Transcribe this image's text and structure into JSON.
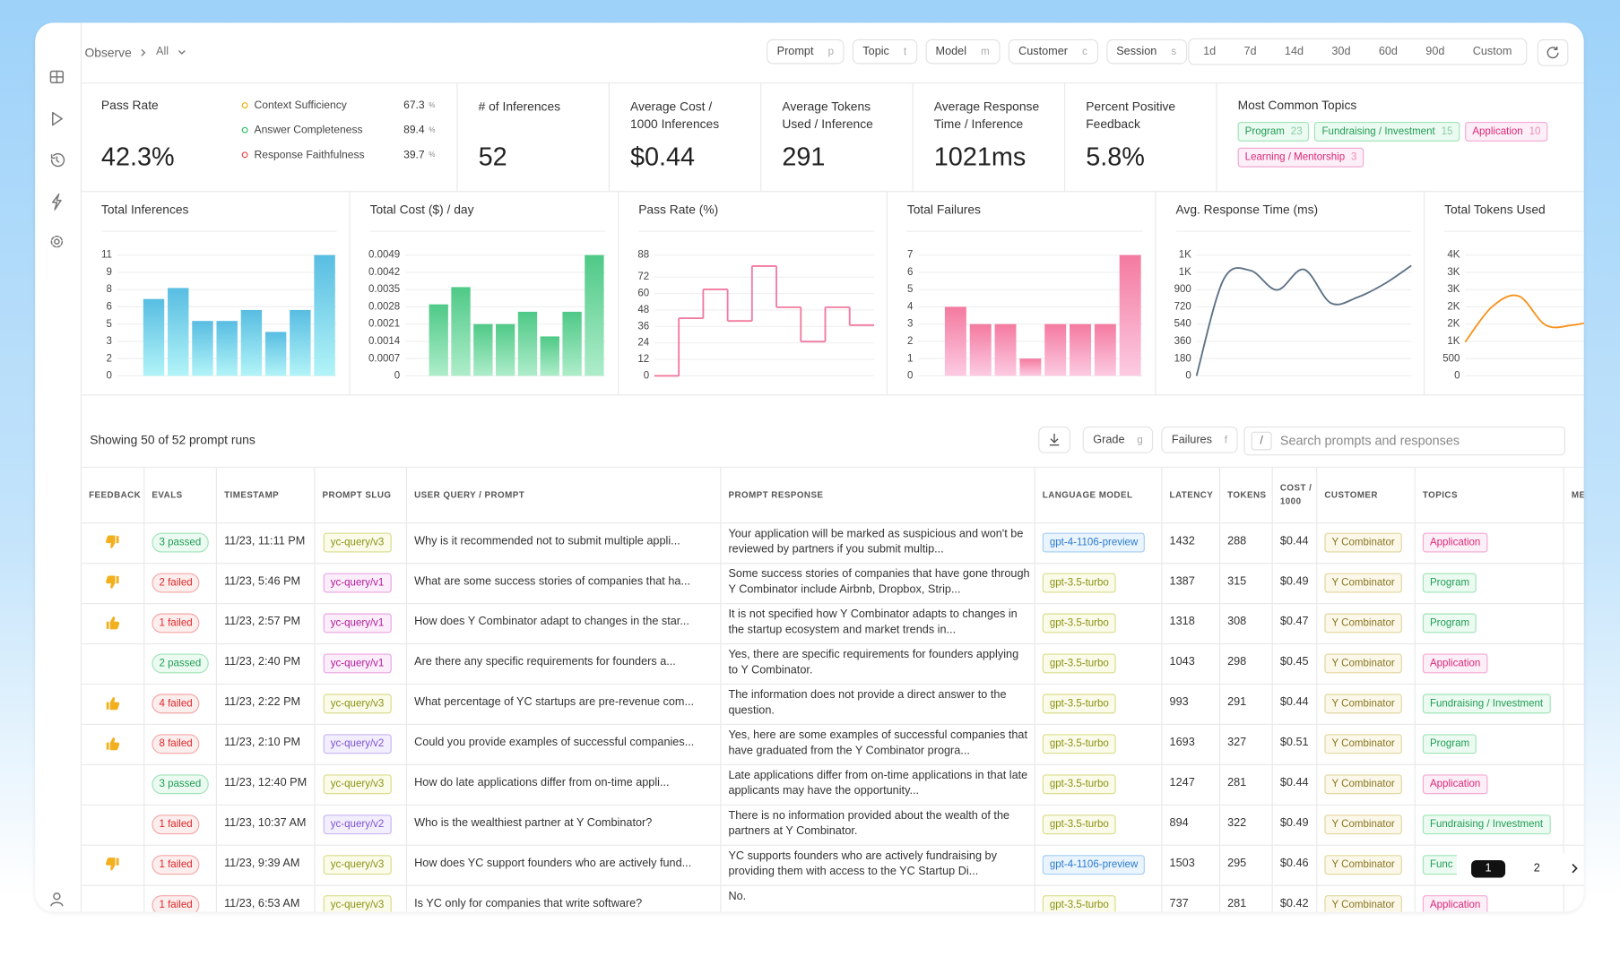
{
  "breadcrumb": {
    "section": "Observe",
    "filter": "All"
  },
  "filters": [
    {
      "label": "Prompt",
      "key": "p"
    },
    {
      "label": "Topic",
      "key": "t"
    },
    {
      "label": "Model",
      "key": "m"
    },
    {
      "label": "Customer",
      "key": "c"
    },
    {
      "label": "Session",
      "key": "s"
    }
  ],
  "ranges": [
    "1d",
    "7d",
    "14d",
    "30d",
    "60d",
    "90d",
    "Custom"
  ],
  "stats": {
    "pass_rate": {
      "label": "Pass Rate",
      "value": "42.3%",
      "metrics": [
        {
          "name": "Context Sufficiency",
          "value": "67.3",
          "unit": "%",
          "color": "#eab308"
        },
        {
          "name": "Answer Completeness",
          "value": "89.4",
          "unit": "%",
          "color": "#22c55e"
        },
        {
          "name": "Response Faithfulness",
          "value": "39.7",
          "unit": "%",
          "color": "#ef4444"
        }
      ]
    },
    "cards": [
      {
        "label": "# of Inferences",
        "value": "52"
      },
      {
        "label": "Average Cost / 1000 Inferences",
        "value": "$0.44"
      },
      {
        "label": "Average Tokens Used / Inference",
        "value": "291"
      },
      {
        "label": "Average Response Time / Inference",
        "value": "1021ms"
      },
      {
        "label": "Percent Positive Feedback",
        "value": "5.8%"
      }
    ],
    "topics": {
      "label": "Most Common Topics",
      "items": [
        {
          "name": "Program",
          "count": "23",
          "tone": "green"
        },
        {
          "name": "Fundraising / Investment",
          "count": "15",
          "tone": "green"
        },
        {
          "name": "Application",
          "count": "10",
          "tone": "pink"
        },
        {
          "name": "Learning / Mentorship",
          "count": "3",
          "tone": "pink"
        }
      ]
    }
  },
  "charts": [
    {
      "type": "bar",
      "title": "Total Inferences",
      "values": [
        0,
        7,
        8,
        5,
        5,
        6,
        4,
        6,
        11
      ],
      "gradient": [
        "#58bde2",
        "#b2f4f8"
      ],
      "ylim": [
        0,
        11
      ],
      "yticks": [
        0,
        {
          "value": 1.57,
          "label": "2"
        },
        {
          "value": 3.14,
          "label": "3"
        },
        {
          "value": 4.71,
          "label": "5"
        },
        {
          "value": 6.29,
          "label": "6"
        },
        {
          "value": 7.86,
          "label": "8"
        },
        {
          "value": 9.43,
          "label": "9"
        },
        11
      ]
    },
    {
      "type": "bar",
      "title": "Total Cost ($) / day",
      "values": [
        0,
        0.0029,
        0.0036,
        0.0021,
        0.0021,
        0.0026,
        0.0016,
        0.0026,
        0.0049
      ],
      "gradient": [
        "#4fc987",
        "#aeedca"
      ],
      "ylim": [
        0,
        0.0049
      ],
      "yticks": [
        0,
        0.0007,
        0.0014,
        0.0021,
        0.0028,
        0.0035,
        0.0042,
        0.0049
      ]
    },
    {
      "type": "step",
      "title": "Pass Rate (%)",
      "values": [
        0,
        42,
        63,
        40,
        80,
        50,
        25,
        50,
        37
      ],
      "color": "#f27a9e",
      "ylim": [
        0,
        88
      ],
      "yticks": [
        0,
        12,
        24,
        36,
        48,
        60,
        72,
        88
      ]
    },
    {
      "type": "bar",
      "title": "Total Failures",
      "values": [
        0,
        4,
        3,
        3,
        1,
        3,
        3,
        3,
        7
      ],
      "gradient": [
        "#f47aa0",
        "#fccbe2"
      ],
      "ylim": [
        0,
        7
      ],
      "yticks": [
        0,
        1,
        2,
        3,
        4,
        5,
        6,
        7
      ]
    },
    {
      "type": "line",
      "title": "Avg. Response Time (ms)",
      "values": [
        0,
        1000,
        1100,
        896,
        1110,
        760,
        820,
        960,
        1150
      ],
      "color": "#5b7084",
      "ylim": [
        0,
        1260
      ],
      "yticks": [
        0,
        180,
        360,
        540,
        720,
        900,
        {
          "value": 1080,
          "label": "1K"
        },
        {
          "value": 1260,
          "label": "1K"
        }
      ]
    },
    {
      "type": "line",
      "title": "Total Tokens Used",
      "values": [
        980,
        2000,
        2310,
        1470,
        1470,
        1620
      ],
      "color": "#f7931e",
      "ylim": [
        0,
        3500
      ],
      "yticks": [
        0,
        500,
        {
          "value": 1000,
          "label": "1K"
        },
        {
          "value": 1500,
          "label": "2K"
        },
        {
          "value": 2000,
          "label": "2K"
        },
        {
          "value": 2500,
          "label": "3K"
        },
        {
          "value": 3000,
          "label": "3K"
        },
        {
          "value": 3500,
          "label": "4K"
        }
      ]
    }
  ],
  "table": {
    "summary": "Showing 50 of 52 prompt runs",
    "actions": [
      {
        "label": "Grade",
        "key": "g"
      },
      {
        "label": "Failures",
        "key": "f"
      }
    ],
    "search": {
      "key": "/",
      "placeholder": "Search prompts and responses"
    },
    "columns": [
      "FEEDBACK",
      "EVALS",
      "TIMESTAMP",
      "PROMPT SLUG",
      "USER QUERY / PROMPT",
      "PROMPT RESPONSE",
      "LANGUAGE MODEL",
      "LATENCY",
      "TOKENS",
      "COST / 1000",
      "CUSTOMER",
      "TOPICS",
      "ME"
    ],
    "rows": [
      {
        "feedback": "down",
        "evals": {
          "text": "3 passed",
          "tone": "green"
        },
        "timestamp": "11/23, 11:11 PM",
        "slug": {
          "text": "yc-query/v3",
          "tone": "olive"
        },
        "query": "Why is it recommended not to submit multiple appli...",
        "response": "Your application will be marked as suspicious and won't be reviewed by partners if you submit multip...",
        "model": {
          "text": "gpt-4-1106-preview",
          "tone": "blue"
        },
        "latency": "1432",
        "tokens": "288",
        "cost": "$0.44",
        "customer": "Y Combinator",
        "topic": {
          "text": "Application",
          "tone": "pink"
        }
      },
      {
        "feedback": "down",
        "evals": {
          "text": "2 failed",
          "tone": "red"
        },
        "timestamp": "11/23, 5:46 PM",
        "slug": {
          "text": "yc-query/v1",
          "tone": "magenta"
        },
        "query": "What are some success stories of companies that ha...",
        "response": "Some success stories of companies that have gone through Y Combinator include Airbnb, Dropbox, Strip...",
        "model": {
          "text": "gpt-3.5-turbo",
          "tone": "olive"
        },
        "latency": "1387",
        "tokens": "315",
        "cost": "$0.49",
        "customer": "Y Combinator",
        "topic": {
          "text": "Program",
          "tone": "green"
        }
      },
      {
        "feedback": "up",
        "evals": {
          "text": "1 failed",
          "tone": "red"
        },
        "timestamp": "11/23, 2:57 PM",
        "slug": {
          "text": "yc-query/v1",
          "tone": "magenta"
        },
        "query": "How does Y Combinator adapt to changes in the star...",
        "response": "It is not specified how Y Combinator adapts to changes in the startup ecosystem and market trends in...",
        "model": {
          "text": "gpt-3.5-turbo",
          "tone": "olive"
        },
        "latency": "1318",
        "tokens": "308",
        "cost": "$0.47",
        "customer": "Y Combinator",
        "topic": {
          "text": "Program",
          "tone": "green"
        }
      },
      {
        "evals": {
          "text": "2 passed",
          "tone": "green"
        },
        "timestamp": "11/23, 2:40 PM",
        "slug": {
          "text": "yc-query/v1",
          "tone": "magenta"
        },
        "query": "Are there any specific requirements for founders a...",
        "response": "Yes, there are specific requirements for founders applying to Y Combinator.",
        "model": {
          "text": "gpt-3.5-turbo",
          "tone": "olive"
        },
        "latency": "1043",
        "tokens": "298",
        "cost": "$0.45",
        "customer": "Y Combinator",
        "topic": {
          "text": "Application",
          "tone": "pink"
        }
      },
      {
        "feedback": "up",
        "evals": {
          "text": "4 failed",
          "tone": "red"
        },
        "timestamp": "11/23, 2:22 PM",
        "slug": {
          "text": "yc-query/v3",
          "tone": "olive"
        },
        "query": "What percentage of YC startups are pre-revenue com...",
        "response": "The information does not provide a direct answer to the question.",
        "model": {
          "text": "gpt-3.5-turbo",
          "tone": "olive"
        },
        "latency": "993",
        "tokens": "291",
        "cost": "$0.44",
        "customer": "Y Combinator",
        "topic": {
          "text": "Fundraising / Investment",
          "tone": "green"
        }
      },
      {
        "feedback": "up",
        "evals": {
          "text": "8 failed",
          "tone": "red"
        },
        "timestamp": "11/23, 2:10 PM",
        "slug": {
          "text": "yc-query/v2",
          "tone": "violet"
        },
        "query": "Could you provide examples of successful companies...",
        "response": "Yes, here are some examples of successful companies that have graduated from the Y Combinator progra...",
        "model": {
          "text": "gpt-3.5-turbo",
          "tone": "olive"
        },
        "latency": "1693",
        "tokens": "327",
        "cost": "$0.51",
        "customer": "Y Combinator",
        "topic": {
          "text": "Program",
          "tone": "green"
        }
      },
      {
        "evals": {
          "text": "3 passed",
          "tone": "green"
        },
        "timestamp": "11/23, 12:40 PM",
        "slug": {
          "text": "yc-query/v3",
          "tone": "olive"
        },
        "query": "How do late applications differ from on-time appli...",
        "response": "Late applications differ from on-time applications in that late applicants may have the opportunity...",
        "model": {
          "text": "gpt-3.5-turbo",
          "tone": "olive"
        },
        "latency": "1247",
        "tokens": "281",
        "cost": "$0.44",
        "customer": "Y Combinator",
        "topic": {
          "text": "Application",
          "tone": "pink"
        }
      },
      {
        "evals": {
          "text": "1 failed",
          "tone": "red"
        },
        "timestamp": "11/23, 10:37 AM",
        "slug": {
          "text": "yc-query/v2",
          "tone": "violet"
        },
        "query": "Who is the wealthiest partner at Y Combinator?",
        "response": "There is no information provided about the wealth of the partners at Y Combinator.",
        "model": {
          "text": "gpt-3.5-turbo",
          "tone": "olive"
        },
        "latency": "894",
        "tokens": "322",
        "cost": "$0.49",
        "customer": "Y Combinator",
        "topic": {
          "text": "Fundraising / Investment",
          "tone": "green"
        }
      },
      {
        "feedback": "down",
        "evals": {
          "text": "1 failed",
          "tone": "red"
        },
        "timestamp": "11/23, 9:39 AM",
        "slug": {
          "text": "yc-query/v3",
          "tone": "olive"
        },
        "query": "How does YC support founders who are actively fund...",
        "response": "YC supports founders who are actively fundraising by providing them with access to the YC Startup Di...",
        "model": {
          "text": "gpt-4-1106-preview",
          "tone": "blue"
        },
        "latency": "1503",
        "tokens": "295",
        "cost": "$0.46",
        "customer": "Y Combinator",
        "topic": {
          "text": "Func",
          "tone": "green"
        }
      },
      {
        "evals": {
          "text": "1 failed",
          "tone": "red"
        },
        "timestamp": "11/23, 6:53 AM",
        "slug": {
          "text": "yc-query/v3",
          "tone": "olive"
        },
        "query": "Is YC only for companies that write software?",
        "response": "No.",
        "model": {
          "text": "gpt-3.5-turbo",
          "tone": "olive"
        },
        "latency": "737",
        "tokens": "281",
        "cost": "$0.42",
        "customer": "Y Combinator",
        "topic": {
          "text": "Application",
          "tone": "pink"
        }
      }
    ]
  },
  "pagination": {
    "pages": [
      "1",
      "2"
    ],
    "current": 0
  }
}
